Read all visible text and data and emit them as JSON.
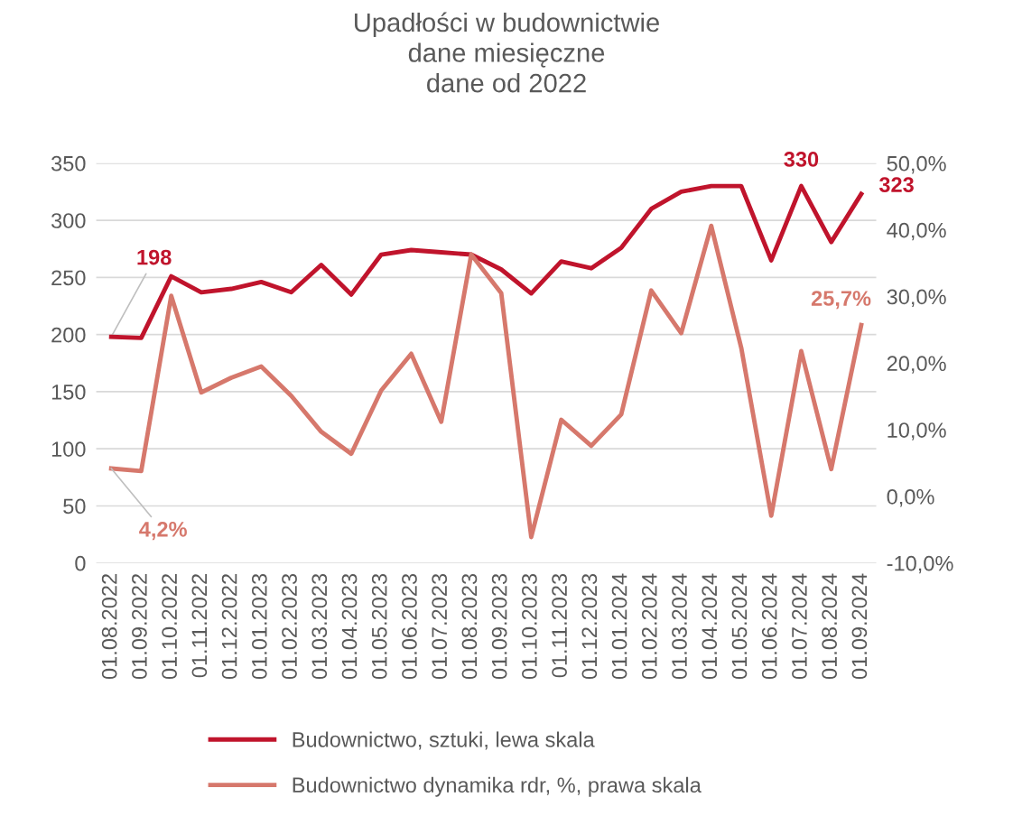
{
  "chart_data": {
    "type": "line",
    "title": "Upadłości w budownictwie\ndane miesięczne\ndane od 2022",
    "categories": [
      "01.08.2022",
      "01.09.2022",
      "01.10.2022",
      "01.11.2022",
      "01.12.2022",
      "01.01.2023",
      "01.02.2023",
      "01.03.2023",
      "01.04.2023",
      "01.05.2023",
      "01.06.2023",
      "01.07.2023",
      "01.08.2023",
      "01.09.2023",
      "01.10.2023",
      "01.11.2023",
      "01.12.2023",
      "01.01.2024",
      "01.02.2024",
      "01.03.2024",
      "01.04.2024",
      "01.05.2024",
      "01.06.2024",
      "01.07.2024",
      "01.08.2024",
      "01.09.2024"
    ],
    "series": [
      {
        "name": "Budownictwo, sztuki, lewa skala",
        "color": "#c0142c",
        "values": [
          198,
          197,
          251,
          237,
          240,
          246,
          237,
          261,
          235,
          270,
          274,
          272,
          270,
          257,
          236,
          264,
          258,
          276,
          310,
          325,
          330,
          330,
          265,
          330,
          281,
          323
        ],
        "value_labels": [
          "198",
          null,
          null,
          null,
          null,
          null,
          null,
          null,
          null,
          null,
          null,
          null,
          null,
          null,
          null,
          null,
          null,
          null,
          null,
          null,
          null,
          null,
          null,
          "330",
          null,
          "323"
        ]
      },
      {
        "name": "Budownictwo dynamika rdr, %, prawa skala",
        "color": "#d6786c",
        "axis": "y2",
        "values": [
          4.2,
          3.8,
          30.1,
          15.6,
          17.8,
          19.5,
          15.1,
          9.7,
          6.4,
          15.9,
          21.4,
          11.2,
          36.3,
          30.5,
          -6.1,
          11.5,
          7.6,
          12.3,
          30.9,
          24.5,
          40.6,
          22.3,
          -2.9,
          21.8,
          4.1,
          25.7
        ],
        "value_labels": [
          "4,2%",
          null,
          null,
          null,
          null,
          null,
          null,
          null,
          null,
          null,
          null,
          null,
          null,
          null,
          null,
          null,
          null,
          null,
          null,
          null,
          null,
          null,
          null,
          null,
          null,
          "25,7%"
        ]
      }
    ],
    "ylim": [
      0,
      350
    ],
    "yticks": [
      0,
      50,
      100,
      150,
      200,
      250,
      300,
      350
    ],
    "y2lim": [
      -10,
      50
    ],
    "y2ticks": [
      {
        "value": -10,
        "label": "-10,0%"
      },
      {
        "value": 0,
        "label": "0,0%"
      },
      {
        "value": 10,
        "label": "10,0%"
      },
      {
        "value": 20,
        "label": "20,0%"
      },
      {
        "value": 30,
        "label": "30,0%"
      },
      {
        "value": 40,
        "label": "40,0%"
      },
      {
        "value": 50,
        "label": "50,0%"
      }
    ],
    "grid": "y",
    "legend": "bottom",
    "marker": "none",
    "line_style": "solid"
  }
}
